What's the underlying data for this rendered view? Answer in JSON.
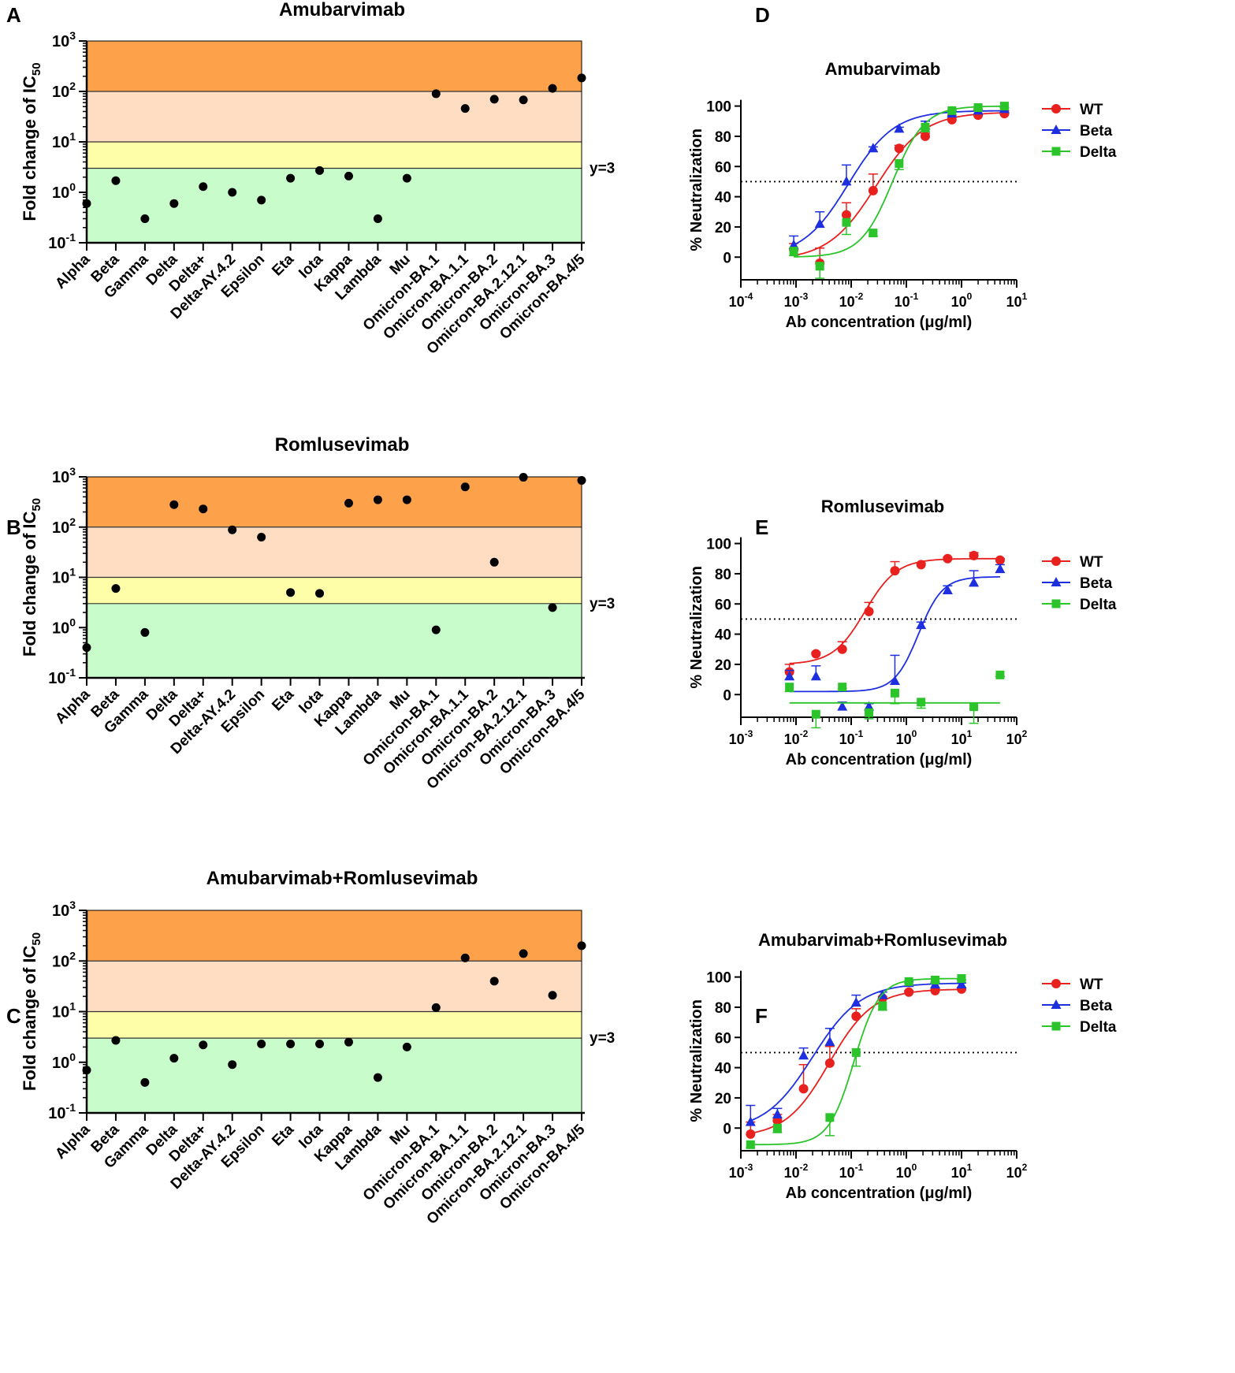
{
  "figure": {
    "panels": [
      "A",
      "B",
      "C",
      "D",
      "E",
      "F"
    ]
  },
  "colors": {
    "band_dark_orange": "#FDA14B",
    "band_light_orange": "#FEDDC3",
    "band_yellow": "#FEFEA8",
    "band_green": "#C8FDCB",
    "wt": "#E8201E",
    "beta": "#1E2FE0",
    "delta": "#2BC42B",
    "dot": "#000000"
  },
  "chart_data": [
    {
      "id": "A",
      "type": "scatter",
      "title": "Amubarvimab",
      "ylabel_main": "Fold change of IC",
      "ylabel_sub": "50",
      "yscale": "log",
      "ylim": [
        0.1,
        1000
      ],
      "yticks": [
        {
          "base": "10",
          "exp": "-1"
        },
        {
          "base": "10",
          "exp": "0"
        },
        {
          "base": "10",
          "exp": "1"
        },
        {
          "base": "10",
          "exp": "2"
        },
        {
          "base": "10",
          "exp": "3"
        }
      ],
      "threshold_label": "y=3",
      "bands": [
        {
          "from": 100,
          "to": 1000,
          "color_key": "band_dark_orange"
        },
        {
          "from": 10,
          "to": 100,
          "color_key": "band_light_orange"
        },
        {
          "from": 3,
          "to": 10,
          "color_key": "band_yellow"
        },
        {
          "from": 0.1,
          "to": 3,
          "color_key": "band_green"
        }
      ],
      "categories": [
        "Alpha",
        "Beta",
        "Gamma",
        "Delta",
        "Delta+",
        "Delta-AY.4.2",
        "Epsilon",
        "Eta",
        "Iota",
        "Kappa",
        "Lambda",
        "Mu",
        "Omicron-BA.1",
        "Omicron-BA.1.1",
        "Omicron-BA.2",
        "Omicron-BA.2.12.1",
        "Omicron-BA.3",
        "Omicron-BA.4/5"
      ],
      "values": [
        0.6,
        1.7,
        0.3,
        0.6,
        1.3,
        1.0,
        0.7,
        1.9,
        2.7,
        2.1,
        0.3,
        1.9,
        90,
        46,
        70,
        68,
        115,
        185
      ]
    },
    {
      "id": "B",
      "type": "scatter",
      "title": "Romlusevimab",
      "ylabel_main": "Fold change of IC",
      "ylabel_sub": "50",
      "yscale": "log",
      "ylim": [
        0.1,
        1000
      ],
      "yticks": [
        {
          "base": "10",
          "exp": "-1"
        },
        {
          "base": "10",
          "exp": "0"
        },
        {
          "base": "10",
          "exp": "1"
        },
        {
          "base": "10",
          "exp": "2"
        },
        {
          "base": "10",
          "exp": "3"
        }
      ],
      "threshold_label": "y=3",
      "bands": [
        {
          "from": 100,
          "to": 1000,
          "color_key": "band_dark_orange"
        },
        {
          "from": 10,
          "to": 100,
          "color_key": "band_light_orange"
        },
        {
          "from": 3,
          "to": 10,
          "color_key": "band_yellow"
        },
        {
          "from": 0.1,
          "to": 3,
          "color_key": "band_green"
        }
      ],
      "categories": [
        "Alpha",
        "Beta",
        "Gamma",
        "Delta",
        "Delta+",
        "Delta-AY.4.2",
        "Epsilon",
        "Eta",
        "Iota",
        "Kappa",
        "Lambda",
        "Mu",
        "Omicron-BA.1",
        "Omicron-BA.1.1",
        "Omicron-BA.2",
        "Omicron-BA.2.12.1",
        "Omicron-BA.3",
        "Omicron-BA.4/5"
      ],
      "values": [
        0.4,
        6.0,
        0.8,
        280,
        230,
        88,
        63,
        5.0,
        4.8,
        300,
        350,
        350,
        0.9,
        630,
        20,
        980,
        2.5,
        850
      ]
    },
    {
      "id": "C",
      "type": "scatter",
      "title": "Amubarvimab+Romlusevimab",
      "ylabel_main": "Fold change of IC",
      "ylabel_sub": "50",
      "yscale": "log",
      "ylim": [
        0.1,
        1000
      ],
      "yticks": [
        {
          "base": "10",
          "exp": "-1"
        },
        {
          "base": "10",
          "exp": "0"
        },
        {
          "base": "10",
          "exp": "1"
        },
        {
          "base": "10",
          "exp": "2"
        },
        {
          "base": "10",
          "exp": "3"
        }
      ],
      "threshold_label": "y=3",
      "bands": [
        {
          "from": 100,
          "to": 1000,
          "color_key": "band_dark_orange"
        },
        {
          "from": 10,
          "to": 100,
          "color_key": "band_light_orange"
        },
        {
          "from": 3,
          "to": 10,
          "color_key": "band_yellow"
        },
        {
          "from": 0.1,
          "to": 3,
          "color_key": "band_green"
        }
      ],
      "categories": [
        "Alpha",
        "Beta",
        "Gamma",
        "Delta",
        "Delta+",
        "Delta-AY.4.2",
        "Epsilon",
        "Eta",
        "Iota",
        "Kappa",
        "Lambda",
        "Mu",
        "Omicron-BA.1",
        "Omicron-BA.1.1",
        "Omicron-BA.2",
        "Omicron-BA.2.12.1",
        "Omicron-BA.3",
        "Omicron-BA.4/5"
      ],
      "values": [
        0.7,
        2.7,
        0.4,
        1.2,
        2.2,
        0.9,
        2.3,
        2.3,
        2.3,
        2.5,
        0.5,
        2.0,
        12,
        115,
        40,
        140,
        21,
        200
      ]
    },
    {
      "id": "D",
      "type": "line",
      "title": "Amubarvimab",
      "xlabel": "Ab concentration (μg/ml)",
      "ylabel": "% Neutralization",
      "xscale": "log",
      "xlim_exp": [
        -4,
        1
      ],
      "xticks": [
        {
          "base": "10",
          "exp": "-4"
        },
        {
          "base": "10",
          "exp": "-3"
        },
        {
          "base": "10",
          "exp": "-2"
        },
        {
          "base": "10",
          "exp": "-1"
        },
        {
          "base": "10",
          "exp": "0"
        },
        {
          "base": "10",
          "exp": "1"
        }
      ],
      "ylim": [
        -15,
        105
      ],
      "yticks": [
        "0",
        "20",
        "40",
        "60",
        "80",
        "100"
      ],
      "reference_line": 50,
      "series": [
        {
          "name": "WT",
          "color_key": "wt",
          "marker": "circle",
          "x": [
            0.00091,
            0.0027,
            0.0082,
            0.025,
            0.074,
            0.22,
            0.67,
            2,
            6
          ],
          "y": [
            5,
            -4,
            28,
            44,
            72,
            80,
            91,
            94,
            95
          ],
          "err": [
            4,
            10,
            8,
            11,
            2,
            2,
            3,
            3,
            2
          ],
          "fit": {
            "bottom": -2,
            "top": 96,
            "logec50": -1.55,
            "hill": 1.0
          }
        },
        {
          "name": "Beta",
          "color_key": "beta",
          "marker": "triangle",
          "x": [
            0.00091,
            0.0027,
            0.0082,
            0.025,
            0.074,
            0.22,
            0.67,
            2,
            6
          ],
          "y": [
            8,
            22,
            50,
            72,
            85,
            87,
            95,
            97,
            98
          ],
          "err": [
            6,
            8,
            11,
            1,
            1,
            3,
            2,
            1,
            1
          ],
          "fit": {
            "bottom": 0,
            "top": 97,
            "logec50": -2.05,
            "hill": 1.05
          }
        },
        {
          "name": "Delta",
          "color_key": "delta",
          "marker": "square",
          "x": [
            0.00091,
            0.0027,
            0.0082,
            0.025,
            0.074,
            0.22,
            0.67,
            2,
            6
          ],
          "y": [
            4,
            -6,
            23,
            16,
            62,
            86,
            97,
            99,
            100
          ],
          "err": [
            3,
            8,
            8,
            2,
            4,
            3,
            1,
            1,
            1
          ],
          "fit": {
            "bottom": 0,
            "top": 100,
            "logec50": -1.25,
            "hill": 1.5
          }
        }
      ]
    },
    {
      "id": "E",
      "type": "line",
      "title": "Romlusevimab",
      "xlabel": "Ab concentration (μg/ml)",
      "ylabel": "% Neutralization",
      "xscale": "log",
      "xlim_exp": [
        -3,
        2
      ],
      "xticks": [
        {
          "base": "10",
          "exp": "-3"
        },
        {
          "base": "10",
          "exp": "-2"
        },
        {
          "base": "10",
          "exp": "-1"
        },
        {
          "base": "10",
          "exp": "0"
        },
        {
          "base": "10",
          "exp": "1"
        },
        {
          "base": "10",
          "exp": "2"
        }
      ],
      "ylim": [
        -15,
        105
      ],
      "yticks": [
        "0",
        "20",
        "40",
        "60",
        "80",
        "100"
      ],
      "reference_line": 50,
      "series": [
        {
          "name": "WT",
          "color_key": "wt",
          "marker": "circle",
          "x": [
            0.0076,
            0.023,
            0.069,
            0.21,
            0.62,
            1.85,
            5.6,
            16.7,
            50
          ],
          "y": [
            15,
            27,
            30,
            55,
            82,
            86,
            90,
            92,
            89
          ],
          "err": [
            5,
            1,
            5,
            6,
            6,
            1,
            1,
            2,
            1
          ],
          "fit": {
            "bottom": 20,
            "top": 90,
            "logec50": -0.75,
            "hill": 1.5
          }
        },
        {
          "name": "Beta",
          "color_key": "beta",
          "marker": "triangle",
          "x": [
            0.0076,
            0.023,
            0.069,
            0.21,
            0.62,
            1.85,
            5.6,
            16.7,
            50
          ],
          "y": [
            12,
            12,
            -8,
            -8,
            9,
            46,
            69,
            74,
            83
          ],
          "err": [
            4,
            7,
            3,
            2,
            17,
            2,
            3,
            8,
            3
          ],
          "fit": {
            "bottom": 2,
            "top": 78,
            "logec50": 0.22,
            "hill": 2.0
          }
        },
        {
          "name": "Delta",
          "color_key": "delta",
          "marker": "square",
          "x": [
            0.0076,
            0.023,
            0.069,
            0.21,
            0.62,
            1.85,
            5.6,
            16.7,
            50
          ],
          "y": [
            5,
            -13,
            5,
            -12,
            1,
            -5,
            null,
            -8,
            13
          ],
          "err": [
            3,
            9,
            1,
            4,
            7,
            4,
            0,
            11,
            1
          ],
          "fit": {
            "bottom": -5.5,
            "top": 1000,
            "logec50": 2.9,
            "hill": 6.0
          }
        }
      ]
    },
    {
      "id": "F",
      "type": "line",
      "title": "Amubarvimab+Romlusevimab",
      "xlabel": "Ab concentration (μg/ml)",
      "ylabel": "% Neutralization",
      "xscale": "log",
      "xlim_exp": [
        -3,
        2
      ],
      "xticks": [
        {
          "base": "10",
          "exp": "-3"
        },
        {
          "base": "10",
          "exp": "-2"
        },
        {
          "base": "10",
          "exp": "-1"
        },
        {
          "base": "10",
          "exp": "0"
        },
        {
          "base": "10",
          "exp": "1"
        },
        {
          "base": "10",
          "exp": "2"
        }
      ],
      "ylim": [
        -15,
        105
      ],
      "yticks": [
        "0",
        "20",
        "40",
        "60",
        "80",
        "100"
      ],
      "reference_line": 50,
      "series": [
        {
          "name": "WT",
          "color_key": "wt",
          "marker": "circle",
          "x": [
            0.0015,
            0.0046,
            0.0137,
            0.041,
            0.123,
            0.37,
            1.11,
            3.33,
            10
          ],
          "y": [
            -4,
            5,
            26,
            43,
            74,
            86,
            90,
            91,
            92
          ],
          "err": [
            8,
            4,
            16,
            11,
            5,
            1,
            1,
            1,
            1
          ],
          "fit": {
            "bottom": -6,
            "top": 92,
            "logec50": -1.4,
            "hill": 1.1
          }
        },
        {
          "name": "Beta",
          "color_key": "beta",
          "marker": "triangle",
          "x": [
            0.0015,
            0.0046,
            0.0137,
            0.041,
            0.123,
            0.37,
            1.11,
            3.33,
            10
          ],
          "y": [
            4,
            9,
            48,
            57,
            83,
            88,
            96,
            95,
            95
          ],
          "err": [
            11,
            4,
            5,
            9,
            5,
            2,
            1,
            1,
            1
          ],
          "fit": {
            "bottom": -2,
            "top": 96,
            "logec50": -1.7,
            "hill": 1.0
          }
        },
        {
          "name": "Delta",
          "color_key": "delta",
          "marker": "square",
          "x": [
            0.0015,
            0.0046,
            0.0137,
            0.041,
            0.123,
            0.37,
            1.11,
            3.33,
            10
          ],
          "y": [
            -11,
            0,
            null,
            7,
            50,
            81,
            97,
            98,
            99
          ],
          "err": [
            2,
            3,
            0,
            12,
            9,
            3,
            1,
            1,
            1
          ],
          "fit": {
            "bottom": -11,
            "top": 99,
            "logec50": -0.95,
            "hill": 1.9
          }
        }
      ]
    }
  ]
}
